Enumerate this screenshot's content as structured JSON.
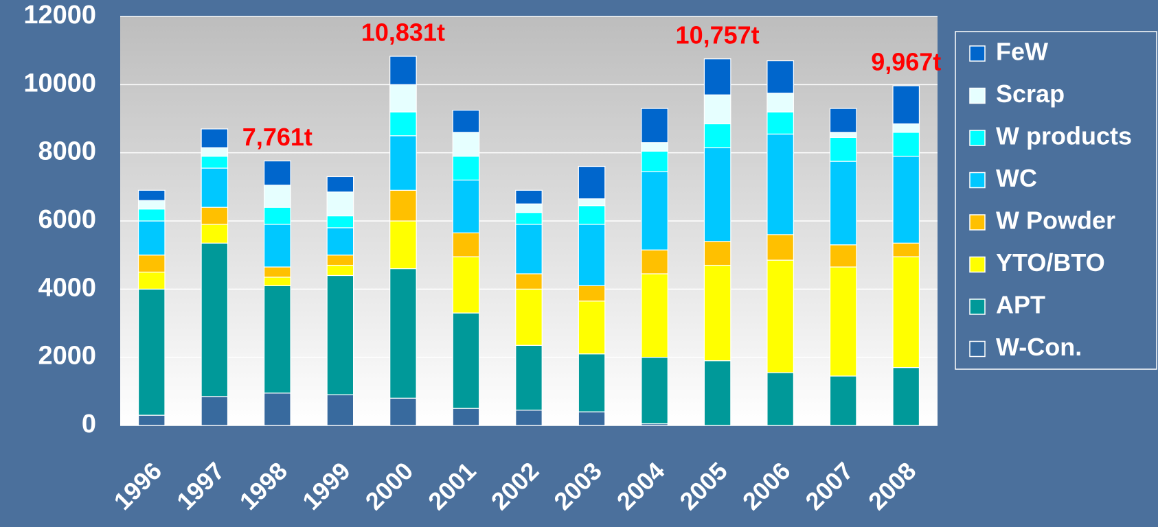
{
  "chart_data": {
    "type": "stacked_bar",
    "categories": [
      "1996",
      "1997",
      "1998",
      "1999",
      "2000",
      "2001",
      "2002",
      "2003",
      "2004",
      "2005",
      "2006",
      "2007",
      "2008"
    ],
    "series": [
      {
        "name": "W-Con.",
        "color": "#386a9e",
        "values": [
          300,
          850,
          950,
          900,
          800,
          500,
          450,
          400,
          50,
          0,
          0,
          0,
          0
        ]
      },
      {
        "name": "APT",
        "color": "#009999",
        "values": [
          3700,
          4500,
          3150,
          3500,
          3800,
          2800,
          1900,
          1700,
          1950,
          1900,
          1550,
          1450,
          1700
        ]
      },
      {
        "name": "YTO/BTO",
        "color": "#ffff00",
        "values": [
          500,
          550,
          250,
          300,
          1400,
          1650,
          1650,
          1550,
          2450,
          2800,
          3300,
          3200,
          3250
        ]
      },
      {
        "name": "W Powder",
        "color": "#ffc000",
        "values": [
          500,
          500,
          300,
          300,
          900,
          700,
          450,
          450,
          700,
          700,
          750,
          650,
          400
        ]
      },
      {
        "name": "WC",
        "color": "#00c8ff",
        "values": [
          1000,
          1150,
          1250,
          800,
          1600,
          1550,
          1450,
          1800,
          2300,
          2750,
          2950,
          2450,
          2550
        ]
      },
      {
        "name": "W products",
        "color": "#00ffff",
        "values": [
          350,
          350,
          500,
          350,
          700,
          700,
          350,
          550,
          600,
          700,
          650,
          700,
          700
        ]
      },
      {
        "name": "Scrap",
        "color": "#e6ffff",
        "values": [
          250,
          250,
          650,
          700,
          800,
          700,
          250,
          200,
          250,
          850,
          550,
          150,
          250
        ]
      },
      {
        "name": "FeW",
        "color": "#0066cc",
        "values": [
          300,
          550,
          711,
          450,
          831,
          650,
          400,
          950,
          1000,
          1057,
          950,
          700,
          1117
        ]
      }
    ],
    "annotations": [
      {
        "text": "7,761t",
        "category": "1998"
      },
      {
        "text": "10,831t",
        "category": "2000"
      },
      {
        "text": "10,757t",
        "category": "2005"
      },
      {
        "text": "9,967t",
        "category": "2008"
      }
    ],
    "ylim": [
      0,
      12000
    ],
    "yticks": [
      0,
      2000,
      4000,
      6000,
      8000,
      10000,
      12000
    ],
    "grid": true,
    "legend": "right"
  }
}
